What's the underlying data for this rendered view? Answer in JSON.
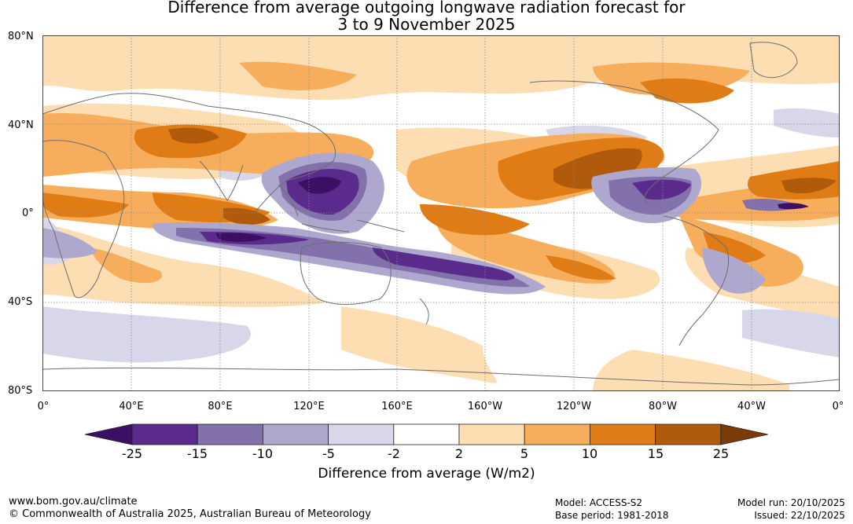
{
  "title": {
    "line1": "Difference from average outgoing longwave radiation forecast for",
    "line2": "3 to 9 November 2025"
  },
  "latitude_labels": [
    "80°N",
    "40°N",
    "0°",
    "40°S",
    "80°S"
  ],
  "longitude_labels": [
    "0°",
    "40°E",
    "80°E",
    "120°E",
    "160°E",
    "160°W",
    "120°W",
    "80°W",
    "40°W",
    "0°"
  ],
  "colorbar": {
    "title": "Difference from average (W/m2)",
    "ticks": [
      "-25",
      "-15",
      "-10",
      "-5",
      "-2",
      "2",
      "5",
      "10",
      "15",
      "25"
    ],
    "colors": [
      "#3b0f63",
      "#5a2a8c",
      "#8271ab",
      "#aea8cf",
      "#d8d7e9",
      "#ffffff",
      "#fddeb3",
      "#f7ae5c",
      "#df7c15",
      "#b05a0c",
      "#7b3a0a"
    ]
  },
  "footer": {
    "url": "www.bom.gov.au/climate",
    "copyright": "© Commonwealth of Australia 2025, Australian Bureau of Meteorology",
    "model": "Model: ACCESS-S2",
    "base_period": "Base period: 1981-2018",
    "model_run": "Model run: 20/10/2025",
    "issued": "Issued: 22/10/2025"
  }
}
